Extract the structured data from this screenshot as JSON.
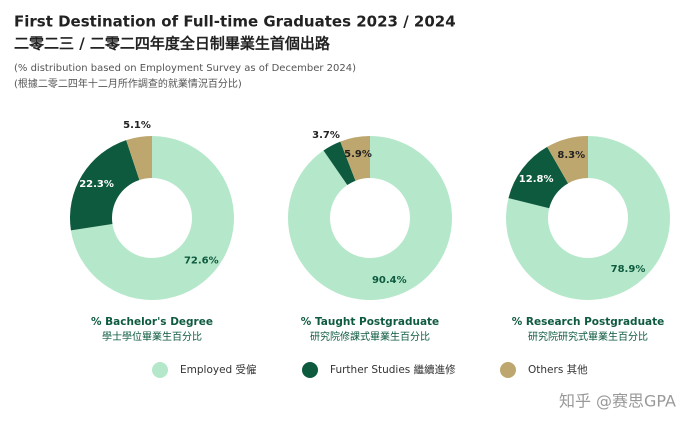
{
  "title": "First Destination of Full-time Graduates 2023 / 2024",
  "title_zh": "二零二三 / 二零二四年度全日制畢業生首個出路",
  "subtitle": "(% distribution based on Employment Survey as of December 2024)",
  "subtitle_zh": "(根據二零二四年十二月所作調查的就業情況百分比)",
  "legend": {
    "labels": [
      "Employed 受僱",
      "Further Studies 繼續進修",
      "Others 其他"
    ],
    "colors": [
      "#b5e8ca",
      "#0e5a3f",
      "#bea76e"
    ]
  },
  "watermark": "知乎 @赛思GPA",
  "chart_data": [
    {
      "type": "pie",
      "title": "% Bachelor's Degree",
      "subtitle": "學士學位畢業生百分比",
      "values": [
        72.6,
        22.3,
        5.1
      ],
      "value_labels": [
        "72.6%",
        "22.3%",
        "5.1%"
      ]
    },
    {
      "type": "pie",
      "title": "% Taught Postgraduate",
      "subtitle": "研究院修課式畢業生百分比",
      "values": [
        90.4,
        3.7,
        5.9
      ],
      "value_labels": [
        "90.4%",
        "3.7%",
        "5.9%"
      ]
    },
    {
      "type": "pie",
      "title": "% Research Postgraduate",
      "subtitle": "研究院研究式畢業生百分比",
      "values": [
        78.9,
        12.8,
        8.3
      ],
      "value_labels": [
        "78.9%",
        "12.8%",
        "8.3%"
      ]
    }
  ]
}
